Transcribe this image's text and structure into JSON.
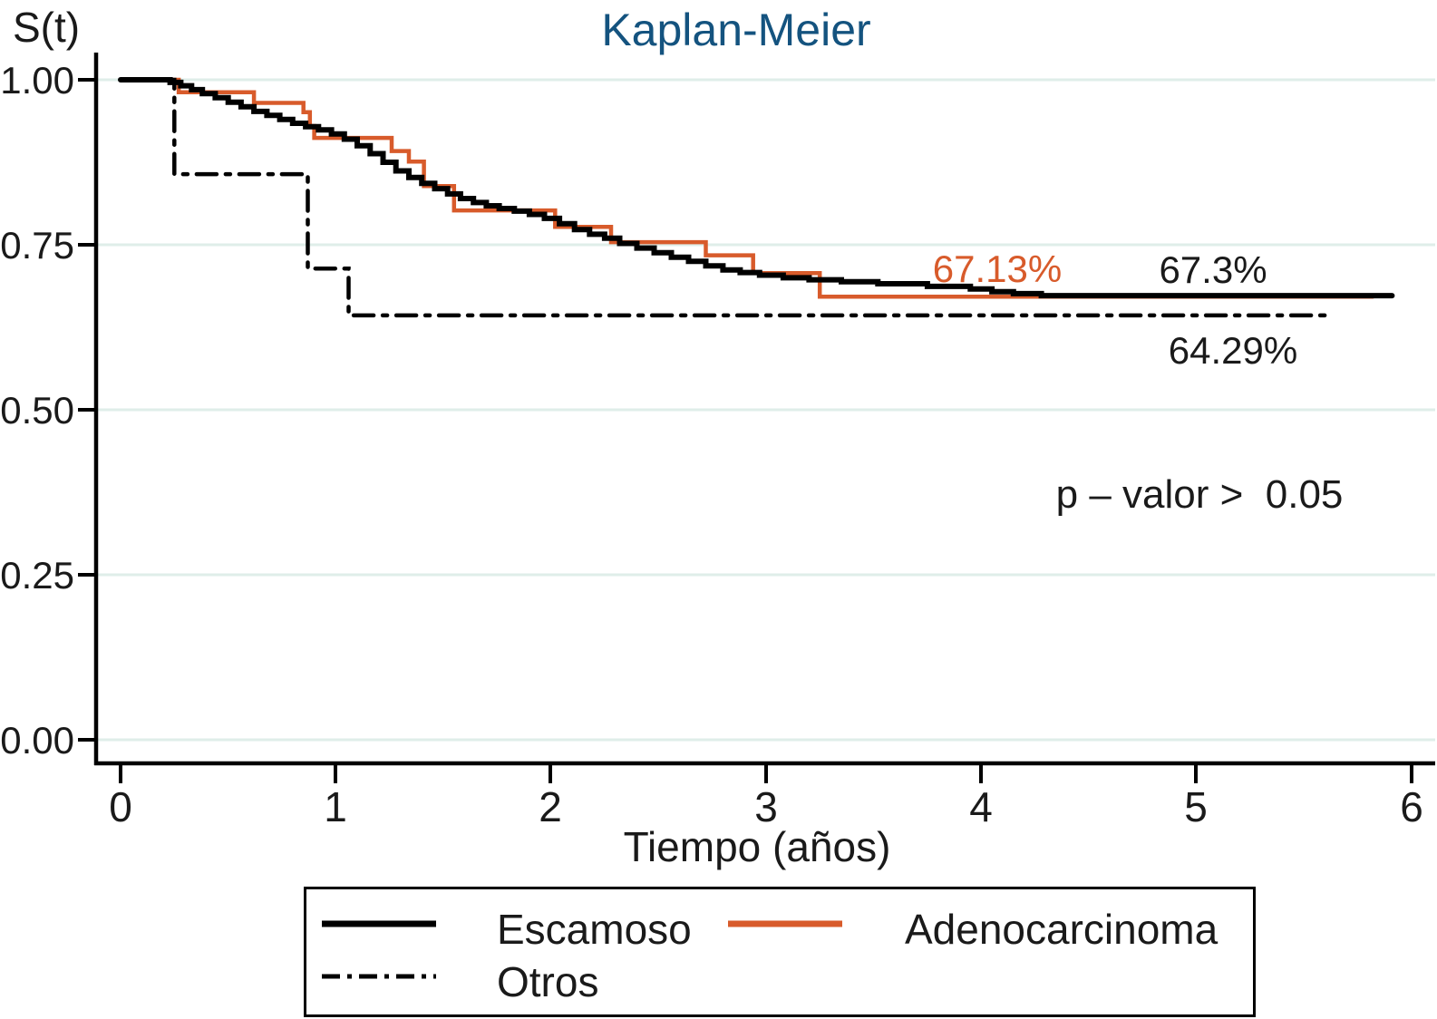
{
  "title": "Kaplan-Meier",
  "y_axis_label": "S(t)",
  "x_axis_label": "Tiempo (años)",
  "p_value_text": "p – valor >  0.05",
  "annotations": {
    "adenocarcinoma_final": "67.13%",
    "escamoso_final": "67.3%",
    "otros_final": "64.29%"
  },
  "colors": {
    "title": "#14537f",
    "escamoso": "#000000",
    "adenocarcinoma": "#d85b2b",
    "otros": "#000000",
    "gridline": "#dfeee9",
    "axis": "#000000",
    "text": "#1a1a1a"
  },
  "legend": {
    "items": [
      {
        "label": "Escamoso",
        "line_style": "solid",
        "color": "#000000"
      },
      {
        "label": "Adenocarcinoma",
        "line_style": "solid",
        "color": "#d85b2b"
      },
      {
        "label": "Otros",
        "line_style": "dash-dot",
        "color": "#000000"
      }
    ]
  },
  "chart_data": {
    "type": "line",
    "subtype": "kaplan-meier step survival curves",
    "title": "Kaplan-Meier",
    "xlabel": "Tiempo (años)",
    "ylabel": "S(t)",
    "xlim": [
      0,
      6
    ],
    "ylim": [
      0.0,
      1.0
    ],
    "xticks": [
      0,
      1,
      2,
      3,
      4,
      5,
      6
    ],
    "yticks": [
      1.0,
      0.75,
      0.5,
      0.25,
      0.0
    ],
    "xtick_labels": [
      "0",
      "1",
      "2",
      "3",
      "4",
      "5",
      "6"
    ],
    "ytick_labels": [
      "1.00",
      "0.75",
      "0.50",
      "0.25",
      "0.00"
    ],
    "grid": "horizontal only",
    "legend_position": "bottom boxed",
    "series": [
      {
        "name": "Escamoso",
        "color": "#000000",
        "style": "solid",
        "width": 6,
        "final_value_label": "67.3%",
        "points": [
          [
            0,
            1.0
          ],
          [
            0.23,
            0.996
          ],
          [
            0.28,
            0.991
          ],
          [
            0.33,
            0.985
          ],
          [
            0.38,
            0.979
          ],
          [
            0.44,
            0.973
          ],
          [
            0.5,
            0.966
          ],
          [
            0.56,
            0.959
          ],
          [
            0.62,
            0.952
          ],
          [
            0.68,
            0.946
          ],
          [
            0.74,
            0.94
          ],
          [
            0.8,
            0.934
          ],
          [
            0.86,
            0.929
          ],
          [
            0.92,
            0.924
          ],
          [
            0.98,
            0.918
          ],
          [
            1.04,
            0.91
          ],
          [
            1.1,
            0.9
          ],
          [
            1.16,
            0.888
          ],
          [
            1.22,
            0.875
          ],
          [
            1.28,
            0.862
          ],
          [
            1.34,
            0.852
          ],
          [
            1.4,
            0.843
          ],
          [
            1.46,
            0.835
          ],
          [
            1.52,
            0.827
          ],
          [
            1.58,
            0.82
          ],
          [
            1.64,
            0.814
          ],
          [
            1.7,
            0.809
          ],
          [
            1.76,
            0.805
          ],
          [
            1.83,
            0.801
          ],
          [
            1.9,
            0.796
          ],
          [
            1.97,
            0.79
          ],
          [
            2.04,
            0.782
          ],
          [
            2.11,
            0.773
          ],
          [
            2.18,
            0.766
          ],
          [
            2.25,
            0.76
          ],
          [
            2.32,
            0.752
          ],
          [
            2.4,
            0.745
          ],
          [
            2.48,
            0.738
          ],
          [
            2.56,
            0.731
          ],
          [
            2.64,
            0.725
          ],
          [
            2.72,
            0.718
          ],
          [
            2.8,
            0.712
          ],
          [
            2.88,
            0.708
          ],
          [
            2.97,
            0.704
          ],
          [
            3.08,
            0.7
          ],
          [
            3.2,
            0.697
          ],
          [
            3.35,
            0.694
          ],
          [
            3.52,
            0.691
          ],
          [
            3.75,
            0.687
          ],
          [
            3.95,
            0.683
          ],
          [
            4.05,
            0.679
          ],
          [
            4.15,
            0.676
          ],
          [
            4.28,
            0.673
          ],
          [
            5.91,
            0.673
          ]
        ]
      },
      {
        "name": "Adenocarcinoma",
        "color": "#d85b2b",
        "style": "solid",
        "width": 4.5,
        "final_value_label": "67.13%",
        "points": [
          [
            0,
            1.0
          ],
          [
            0.27,
            0.981
          ],
          [
            0.62,
            0.965
          ],
          [
            0.85,
            0.951
          ],
          [
            0.88,
            0.93
          ],
          [
            0.9,
            0.912
          ],
          [
            1.26,
            0.892
          ],
          [
            1.34,
            0.876
          ],
          [
            1.41,
            0.839
          ],
          [
            1.55,
            0.802
          ],
          [
            2.02,
            0.777
          ],
          [
            2.28,
            0.754
          ],
          [
            2.72,
            0.734
          ],
          [
            2.94,
            0.707
          ],
          [
            3.25,
            0.6713
          ],
          [
            5.82,
            0.6713
          ]
        ]
      },
      {
        "name": "Otros",
        "color": "#000000",
        "style": "dashdot",
        "width": 4.5,
        "final_value_label": "64.29%",
        "points": [
          [
            0,
            1.0
          ],
          [
            0.25,
            0.857
          ],
          [
            0.87,
            0.714
          ],
          [
            1.06,
            0.643
          ],
          [
            5.63,
            0.643
          ]
        ]
      }
    ]
  }
}
